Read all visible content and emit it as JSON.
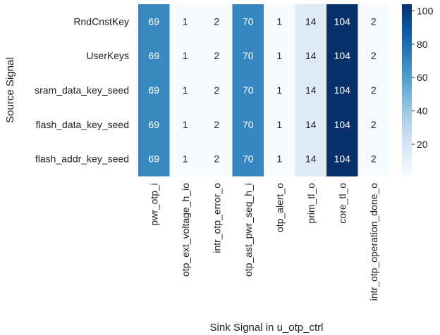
{
  "chart_data": {
    "type": "heatmap",
    "xlabel": "Sink Signal in u_otp_ctrl",
    "ylabel": "Source Signal",
    "rows": [
      "RndCnstKey",
      "UserKeys",
      "sram_data_key_seed",
      "flash_data_key_seed",
      "flash_addr_key_seed"
    ],
    "columns": [
      "pwr_otp_i",
      "otp_ext_voltage_h_io",
      "intr_otp_error_o",
      "otp_ast_pwr_seq_h_i",
      "otp_alert_o",
      "prim_tl_o",
      "core_tl_o",
      "intr_otp_operation_done_o"
    ],
    "values": [
      [
        69,
        1,
        2,
        70,
        1,
        14,
        104,
        2
      ],
      [
        69,
        1,
        2,
        70,
        1,
        14,
        104,
        2
      ],
      [
        69,
        1,
        2,
        70,
        1,
        14,
        104,
        2
      ],
      [
        69,
        1,
        2,
        70,
        1,
        14,
        104,
        2
      ],
      [
        69,
        1,
        2,
        70,
        1,
        14,
        104,
        2
      ]
    ],
    "colorbar": {
      "min": 1,
      "max": 104,
      "ticks": [
        20,
        40,
        60,
        80,
        100
      ],
      "tick_labels": [
        "20",
        "40",
        "60",
        "80",
        "100"
      ]
    },
    "colormap": "Blues",
    "annotations": true
  }
}
